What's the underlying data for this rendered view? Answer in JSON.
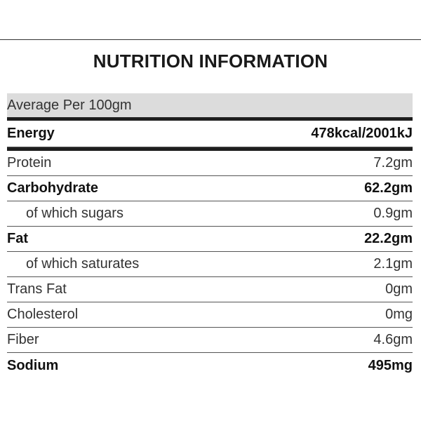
{
  "title": "NUTRITION INFORMATION",
  "header": "Average Per 100gm",
  "energy": {
    "label": "Energy",
    "value": "478kcal/2001kJ"
  },
  "rows": [
    {
      "label": "Protein",
      "value": "7.2gm"
    },
    {
      "label": "Carbohydrate",
      "value": "62.2gm"
    },
    {
      "label": "of which sugars",
      "value": "0.9gm"
    },
    {
      "label": "Fat",
      "value": "22.2gm"
    },
    {
      "label": "of which saturates",
      "value": "2.1gm"
    },
    {
      "label": "Trans Fat",
      "value": "0gm"
    },
    {
      "label": "Cholesterol",
      "value": "0mg"
    },
    {
      "label": "Fiber",
      "value": "4.6gm"
    },
    {
      "label": "Sodium",
      "value": "495mg"
    }
  ]
}
